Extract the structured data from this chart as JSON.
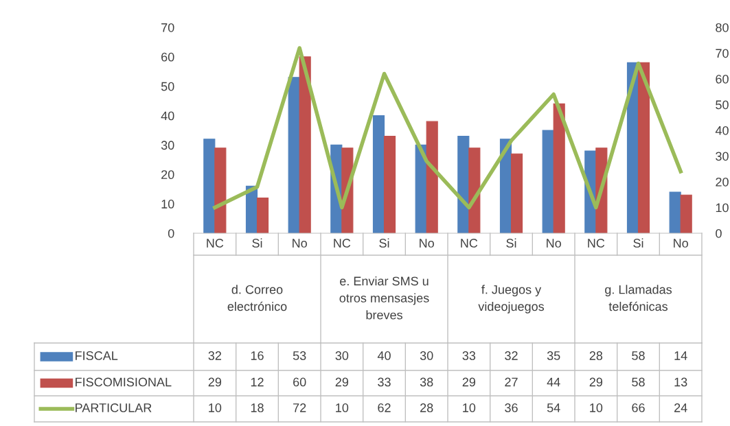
{
  "chart_data": {
    "type": "bar",
    "categories": [
      "NC",
      "Si",
      "No",
      "NC",
      "Si",
      "No",
      "NC",
      "Si",
      "No",
      "NC",
      "Si",
      "No"
    ],
    "series": [
      {
        "name": "FISCAL",
        "color": "#4f81bd",
        "values": [
          32,
          16,
          53,
          30,
          40,
          30,
          33,
          32,
          35,
          28,
          58,
          14
        ]
      },
      {
        "name": "FISCOMISIONAL",
        "color": "#c0504d",
        "values": [
          29,
          12,
          60,
          29,
          33,
          38,
          29,
          27,
          44,
          29,
          58,
          13
        ]
      },
      {
        "name": "PARTICULAR",
        "color": "#9bbb59",
        "type": "line",
        "axis": "y2",
        "values": [
          10,
          18,
          72,
          10,
          62,
          28,
          10,
          36,
          54,
          10,
          66,
          24
        ]
      }
    ],
    "annotations": [
      "d. Correo electrónico",
      "e. Enviar SMS u otros mensasjes breves",
      "f. Juegos y videojuegos",
      "g. Llamadas telefónicas"
    ],
    "ylim": [
      0,
      70
    ],
    "yticks": [
      0,
      10,
      20,
      30,
      40,
      50,
      60,
      70
    ],
    "y2lim": [
      0,
      80
    ],
    "y2ticks": [
      0,
      10,
      20,
      30,
      40,
      50,
      60,
      70,
      80
    ],
    "data_labels": true,
    "legend": "bottom",
    "grid": false
  }
}
